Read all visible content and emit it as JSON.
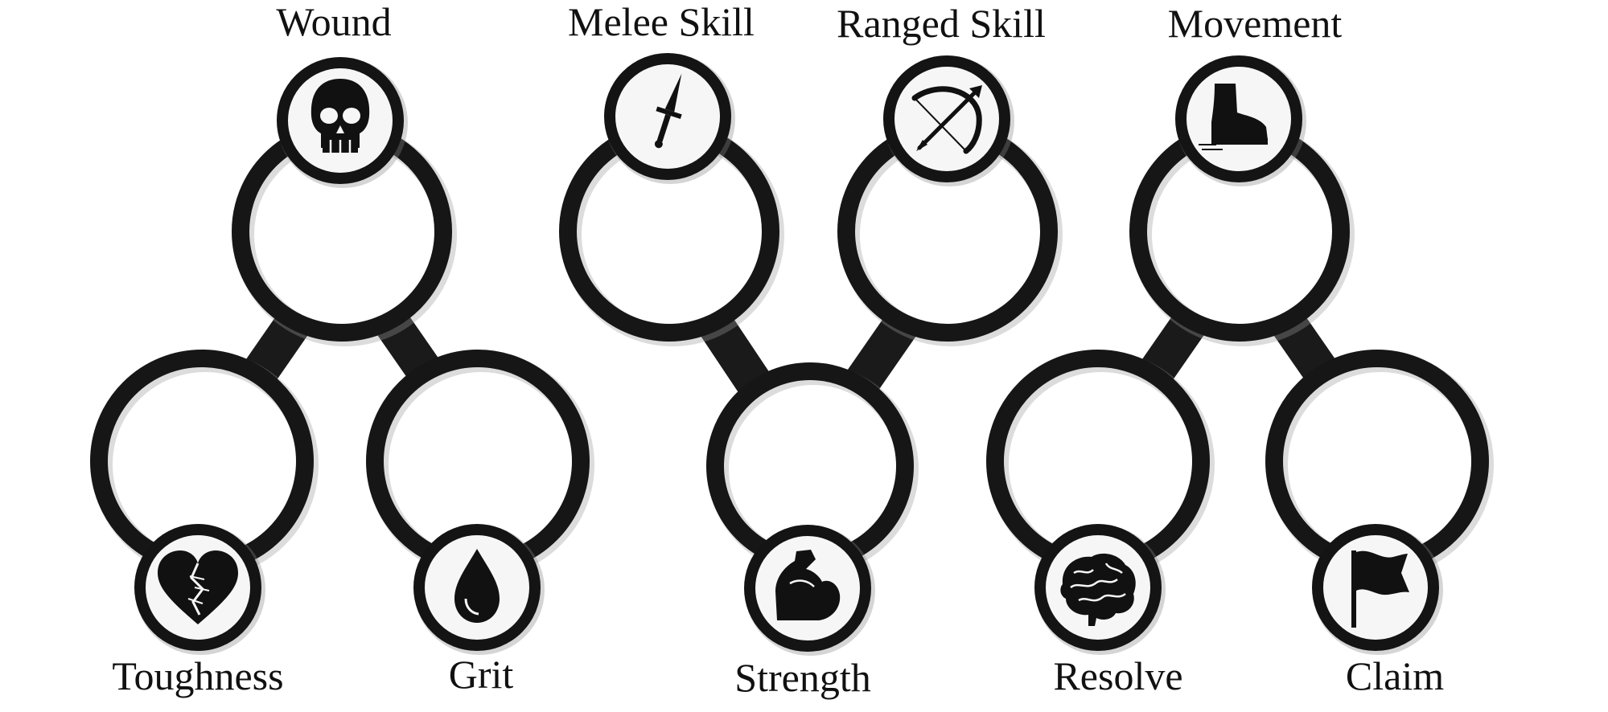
{
  "stats": {
    "wound": "Wound",
    "melee_skill": "Melee Skill",
    "ranged_skill": "Ranged Skill",
    "movement": "Movement",
    "toughness": "Toughness",
    "grit": "Grit",
    "strength": "Strength",
    "resolve": "Resolve",
    "claim": "Claim"
  },
  "icons": {
    "wound": "skull-icon",
    "melee_skill": "dagger-icon",
    "ranged_skill": "bow-icon",
    "movement": "boot-icon",
    "toughness": "broken-heart-icon",
    "grit": "drop-icon",
    "strength": "flexed-arm-icon",
    "resolve": "brain-icon",
    "claim": "flag-icon"
  },
  "colors": {
    "ink": "#161616",
    "background": "#ffffff",
    "badge_fill": "#f6f6f6"
  }
}
